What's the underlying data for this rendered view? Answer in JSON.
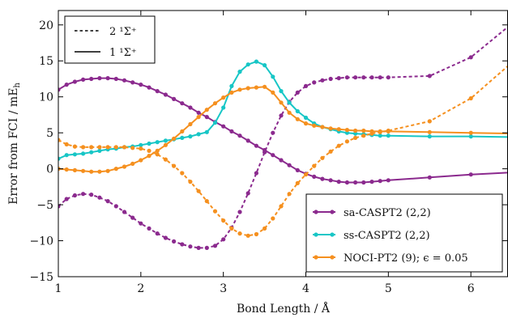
{
  "chart_data": {
    "type": "line",
    "xlabel": "Bond Length / Å",
    "ylabel": "Error from FCI / mE",
    "ylabel_subscript": "h",
    "xlim": [
      1,
      6.45
    ],
    "ylim": [
      -15,
      22
    ],
    "xticks": [
      1,
      2,
      3,
      4,
      5,
      6
    ],
    "yticks": [
      -15,
      -10,
      -5,
      0,
      5,
      10,
      15,
      20
    ],
    "ytick_labels": [
      "−15",
      "−10",
      "−5",
      "0",
      "5",
      "10",
      "15",
      "20"
    ],
    "grid": false,
    "state_legend": {
      "placement": "top-left",
      "entries": [
        {
          "label": "2 ¹Σ⁺",
          "line": "dashed"
        },
        {
          "label": "1 ¹Σ⁺",
          "line": "solid"
        }
      ]
    },
    "method_legend": {
      "placement": "bottom-right",
      "entries": [
        "sa-CASPT2 (2,2)",
        "ss-CASPT2 (2,2)",
        "NOCI-PT2 (9); ϵ = 0.05"
      ]
    },
    "series": [
      {
        "name": "sa-CASPT2 (2,2)",
        "state": "1 ¹Σ⁺",
        "line": "solid",
        "color": "#8B2A8E",
        "x": [
          1.0,
          1.1,
          1.2,
          1.3,
          1.4,
          1.5,
          1.6,
          1.7,
          1.8,
          1.9,
          2.0,
          2.1,
          2.2,
          2.3,
          2.4,
          2.5,
          2.6,
          2.7,
          2.8,
          2.9,
          3.0,
          3.1,
          3.2,
          3.3,
          3.4,
          3.5,
          3.6,
          3.7,
          3.8,
          3.9,
          4.0,
          4.1,
          4.2,
          4.3,
          4.4,
          4.5,
          4.6,
          4.7,
          4.8,
          4.9,
          5.0,
          5.5,
          6.0,
          6.5
        ],
        "y": [
          11.0,
          11.7,
          12.1,
          12.4,
          12.5,
          12.6,
          12.6,
          12.5,
          12.3,
          12.0,
          11.7,
          11.3,
          10.8,
          10.3,
          9.7,
          9.1,
          8.5,
          7.8,
          7.2,
          6.5,
          5.9,
          5.2,
          4.6,
          3.9,
          3.2,
          2.6,
          1.9,
          1.2,
          0.5,
          -0.2,
          -0.7,
          -1.1,
          -1.4,
          -1.6,
          -1.8,
          -1.9,
          -1.9,
          -1.9,
          -1.8,
          -1.7,
          -1.6,
          -1.2,
          -0.8,
          -0.5
        ]
      },
      {
        "name": "sa-CASPT2 (2,2)",
        "state": "2 ¹Σ⁺",
        "line": "dashed",
        "color": "#8B2A8E",
        "x": [
          1.0,
          1.1,
          1.2,
          1.3,
          1.4,
          1.5,
          1.6,
          1.7,
          1.8,
          1.9,
          2.0,
          2.1,
          2.2,
          2.3,
          2.4,
          2.5,
          2.6,
          2.7,
          2.8,
          2.9,
          3.0,
          3.1,
          3.2,
          3.3,
          3.4,
          3.5,
          3.6,
          3.7,
          3.8,
          3.9,
          4.0,
          4.1,
          4.2,
          4.3,
          4.4,
          4.5,
          4.6,
          4.7,
          4.8,
          4.9,
          5.0,
          5.5,
          6.0,
          6.5
        ],
        "y": [
          -5.2,
          -4.2,
          -3.7,
          -3.5,
          -3.6,
          -4.0,
          -4.5,
          -5.2,
          -6.0,
          -6.8,
          -7.6,
          -8.3,
          -9.0,
          -9.6,
          -10.1,
          -10.5,
          -10.8,
          -11.0,
          -11.0,
          -10.7,
          -9.8,
          -8.2,
          -6.0,
          -3.4,
          -0.6,
          2.3,
          5.0,
          7.4,
          9.3,
          10.6,
          11.5,
          12.0,
          12.3,
          12.5,
          12.6,
          12.7,
          12.7,
          12.7,
          12.7,
          12.7,
          12.7,
          12.9,
          15.5,
          20.2
        ]
      },
      {
        "name": "ss-CASPT2 (2,2)",
        "state": "1 ¹Σ⁺",
        "line": "solid",
        "color": "#17C6C6",
        "x": [
          1.0,
          1.1,
          1.2,
          1.3,
          1.4,
          1.5,
          1.6,
          1.7,
          1.8,
          1.9,
          2.0,
          2.1,
          2.2,
          2.3,
          2.4,
          2.5,
          2.6,
          2.7,
          2.8,
          2.9,
          3.0,
          3.1,
          3.2,
          3.3,
          3.4,
          3.5,
          3.6,
          3.7,
          3.8,
          3.9,
          4.0,
          4.1,
          4.2,
          4.3,
          4.4,
          4.5,
          4.6,
          4.7,
          4.8,
          4.9,
          5.0,
          5.5,
          6.0,
          6.5
        ],
        "y": [
          1.4,
          1.9,
          2.0,
          2.1,
          2.3,
          2.5,
          2.7,
          2.8,
          3.0,
          3.1,
          3.3,
          3.5,
          3.7,
          3.9,
          4.1,
          4.3,
          4.5,
          4.8,
          5.1,
          6.4,
          8.5,
          11.5,
          13.5,
          14.5,
          14.9,
          14.4,
          12.8,
          10.8,
          9.2,
          8.0,
          7.1,
          6.3,
          5.8,
          5.5,
          5.2,
          5.0,
          4.9,
          4.8,
          4.7,
          4.6,
          4.6,
          4.5,
          4.5,
          4.4
        ]
      },
      {
        "name": "NOCI-PT2 (9); ϵ = 0.05",
        "state": "1 ¹Σ⁺",
        "line": "solid",
        "color": "#F5901F",
        "x": [
          1.0,
          1.1,
          1.2,
          1.3,
          1.4,
          1.5,
          1.6,
          1.7,
          1.8,
          1.9,
          2.0,
          2.1,
          2.2,
          2.3,
          2.4,
          2.5,
          2.6,
          2.7,
          2.8,
          2.9,
          3.0,
          3.1,
          3.2,
          3.3,
          3.4,
          3.5,
          3.6,
          3.7,
          3.8,
          3.9,
          4.0,
          4.1,
          4.2,
          4.3,
          4.4,
          4.5,
          4.6,
          4.7,
          4.8,
          4.9,
          5.0,
          5.5,
          6.0,
          6.5
        ],
        "y": [
          0.0,
          -0.1,
          -0.2,
          -0.3,
          -0.4,
          -0.4,
          -0.3,
          0.0,
          0.3,
          0.7,
          1.2,
          1.8,
          2.5,
          3.3,
          4.2,
          5.2,
          6.2,
          7.2,
          8.2,
          9.1,
          9.9,
          10.6,
          11.0,
          11.2,
          11.3,
          11.4,
          10.6,
          9.2,
          7.8,
          6.9,
          6.3,
          6.0,
          5.8,
          5.6,
          5.5,
          5.4,
          5.3,
          5.3,
          5.2,
          5.2,
          5.2,
          5.1,
          5.0,
          4.9
        ]
      },
      {
        "name": "NOCI-PT2 (9); ϵ = 0.05",
        "state": "2 ¹Σ⁺",
        "line": "dashed",
        "color": "#F5901F",
        "x": [
          1.0,
          1.1,
          1.2,
          1.3,
          1.4,
          1.5,
          1.6,
          1.7,
          1.8,
          1.9,
          2.0,
          2.1,
          2.2,
          2.3,
          2.4,
          2.5,
          2.6,
          2.7,
          2.8,
          2.9,
          3.0,
          3.1,
          3.2,
          3.3,
          3.4,
          3.5,
          3.6,
          3.7,
          3.8,
          3.9,
          4.0,
          4.1,
          4.2,
          4.3,
          4.4,
          4.5,
          4.6,
          4.7,
          4.8,
          4.9,
          5.0,
          5.5,
          6.0,
          6.5
        ],
        "y": [
          4.0,
          3.4,
          3.1,
          3.0,
          3.0,
          3.0,
          3.0,
          3.0,
          3.0,
          2.9,
          2.8,
          2.5,
          2.0,
          1.3,
          0.4,
          -0.6,
          -1.8,
          -3.1,
          -4.5,
          -5.9,
          -7.2,
          -8.3,
          -9.0,
          -9.3,
          -9.1,
          -8.3,
          -6.9,
          -5.2,
          -3.5,
          -2.0,
          -0.8,
          0.4,
          1.5,
          2.4,
          3.2,
          3.8,
          4.3,
          4.6,
          4.9,
          5.1,
          5.3,
          6.6,
          9.8,
          14.8
        ]
      }
    ]
  }
}
